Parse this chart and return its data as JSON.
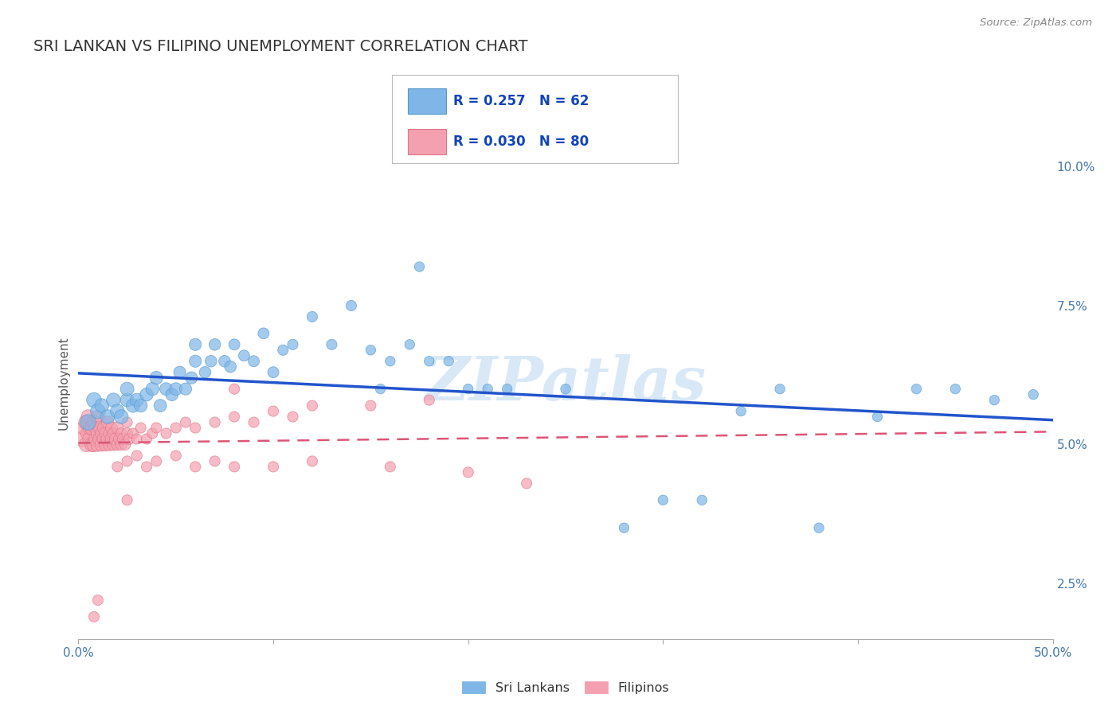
{
  "title": "SRI LANKAN VS FILIPINO UNEMPLOYMENT CORRELATION CHART",
  "source_text": "Source: ZipAtlas.com",
  "ylabel": "Unemployment",
  "xlim": [
    0.0,
    0.5
  ],
  "ylim": [
    0.015,
    0.107
  ],
  "yticks": [
    0.025,
    0.05,
    0.075,
    0.1
  ],
  "ytick_labels": [
    "2.5%",
    "5.0%",
    "7.5%",
    "10.0%"
  ],
  "xtick_labels": [
    "0.0%",
    "50.0%"
  ],
  "sri_lankan_color": "#7EB6E8",
  "sri_lankan_edge": "#5599CC",
  "filipino_color": "#F5A0B0",
  "filipino_edge": "#DD7788",
  "sri_lankan_line_color": "#2255CC",
  "filipino_line_color": "#DD5577",
  "legend_r_sri": "R = 0.257",
  "legend_n_sri": "N = 62",
  "legend_r_fil": "R = 0.030",
  "legend_n_fil": "N = 80",
  "watermark": "ZIPatlas",
  "watermark_color": "#AACCEE",
  "background_color": "#FFFFFF",
  "title_fontsize": 14,
  "tick_label_color": "#4477AA",
  "sri_lankans_x": [
    0.005,
    0.008,
    0.01,
    0.012,
    0.015,
    0.018,
    0.02,
    0.022,
    0.025,
    0.025,
    0.028,
    0.03,
    0.032,
    0.035,
    0.038,
    0.04,
    0.042,
    0.045,
    0.048,
    0.05,
    0.052,
    0.055,
    0.058,
    0.06,
    0.06,
    0.065,
    0.068,
    0.07,
    0.075,
    0.078,
    0.08,
    0.085,
    0.09,
    0.095,
    0.1,
    0.105,
    0.11,
    0.12,
    0.13,
    0.14,
    0.15,
    0.155,
    0.16,
    0.17,
    0.175,
    0.18,
    0.19,
    0.2,
    0.21,
    0.22,
    0.25,
    0.28,
    0.3,
    0.32,
    0.34,
    0.36,
    0.38,
    0.41,
    0.43,
    0.45,
    0.47,
    0.49
  ],
  "sri_lankans_y": [
    0.054,
    0.058,
    0.056,
    0.057,
    0.055,
    0.058,
    0.056,
    0.055,
    0.058,
    0.06,
    0.057,
    0.058,
    0.057,
    0.059,
    0.06,
    0.062,
    0.057,
    0.06,
    0.059,
    0.06,
    0.063,
    0.06,
    0.062,
    0.065,
    0.068,
    0.063,
    0.065,
    0.068,
    0.065,
    0.064,
    0.068,
    0.066,
    0.065,
    0.07,
    0.063,
    0.067,
    0.068,
    0.073,
    0.068,
    0.075,
    0.067,
    0.06,
    0.065,
    0.068,
    0.082,
    0.065,
    0.065,
    0.06,
    0.06,
    0.06,
    0.06,
    0.035,
    0.04,
    0.04,
    0.056,
    0.06,
    0.035,
    0.055,
    0.06,
    0.06,
    0.058,
    0.059
  ],
  "sri_lankans_size": [
    200,
    180,
    180,
    160,
    160,
    160,
    160,
    160,
    150,
    150,
    150,
    150,
    140,
    140,
    140,
    140,
    130,
    130,
    130,
    130,
    120,
    120,
    120,
    120,
    120,
    110,
    110,
    110,
    110,
    110,
    100,
    100,
    100,
    100,
    100,
    90,
    90,
    90,
    90,
    90,
    80,
    80,
    80,
    80,
    80,
    80,
    80,
    80,
    80,
    80,
    80,
    80,
    80,
    80,
    80,
    80,
    80,
    80,
    80,
    80,
    80,
    80
  ],
  "filipinos_x": [
    0.002,
    0.003,
    0.004,
    0.004,
    0.005,
    0.005,
    0.006,
    0.006,
    0.007,
    0.007,
    0.008,
    0.008,
    0.009,
    0.009,
    0.01,
    0.01,
    0.01,
    0.011,
    0.011,
    0.012,
    0.012,
    0.013,
    0.013,
    0.014,
    0.014,
    0.015,
    0.015,
    0.016,
    0.016,
    0.017,
    0.017,
    0.018,
    0.018,
    0.019,
    0.02,
    0.02,
    0.021,
    0.022,
    0.022,
    0.023,
    0.024,
    0.025,
    0.025,
    0.026,
    0.028,
    0.03,
    0.032,
    0.035,
    0.038,
    0.04,
    0.045,
    0.05,
    0.055,
    0.06,
    0.07,
    0.08,
    0.09,
    0.1,
    0.11,
    0.12,
    0.15,
    0.18,
    0.02,
    0.025,
    0.03,
    0.035,
    0.04,
    0.05,
    0.06,
    0.07,
    0.08,
    0.1,
    0.12,
    0.16,
    0.2,
    0.23,
    0.08,
    0.025,
    0.01,
    0.008
  ],
  "filipinos_y": [
    0.051,
    0.053,
    0.05,
    0.054,
    0.052,
    0.055,
    0.051,
    0.053,
    0.05,
    0.053,
    0.05,
    0.054,
    0.051,
    0.053,
    0.05,
    0.052,
    0.055,
    0.051,
    0.053,
    0.05,
    0.052,
    0.051,
    0.053,
    0.05,
    0.052,
    0.051,
    0.054,
    0.05,
    0.052,
    0.051,
    0.053,
    0.05,
    0.052,
    0.051,
    0.05,
    0.053,
    0.051,
    0.05,
    0.052,
    0.051,
    0.05,
    0.052,
    0.054,
    0.051,
    0.052,
    0.051,
    0.053,
    0.051,
    0.052,
    0.053,
    0.052,
    0.053,
    0.054,
    0.053,
    0.054,
    0.055,
    0.054,
    0.056,
    0.055,
    0.057,
    0.057,
    0.058,
    0.046,
    0.047,
    0.048,
    0.046,
    0.047,
    0.048,
    0.046,
    0.047,
    0.046,
    0.046,
    0.047,
    0.046,
    0.045,
    0.043,
    0.06,
    0.04,
    0.022,
    0.019
  ],
  "filipinos_size": [
    200,
    180,
    170,
    180,
    170,
    160,
    170,
    160,
    170,
    160,
    170,
    160,
    160,
    150,
    160,
    150,
    140,
    150,
    140,
    150,
    140,
    140,
    130,
    140,
    130,
    140,
    130,
    130,
    120,
    130,
    120,
    120,
    110,
    120,
    110,
    120,
    110,
    110,
    100,
    110,
    100,
    100,
    90,
    100,
    90,
    90,
    90,
    90,
    90,
    90,
    90,
    90,
    90,
    90,
    90,
    90,
    90,
    90,
    90,
    90,
    90,
    90,
    90,
    90,
    90,
    90,
    90,
    90,
    90,
    90,
    90,
    90,
    90,
    90,
    90,
    90,
    90,
    90,
    90,
    90
  ]
}
